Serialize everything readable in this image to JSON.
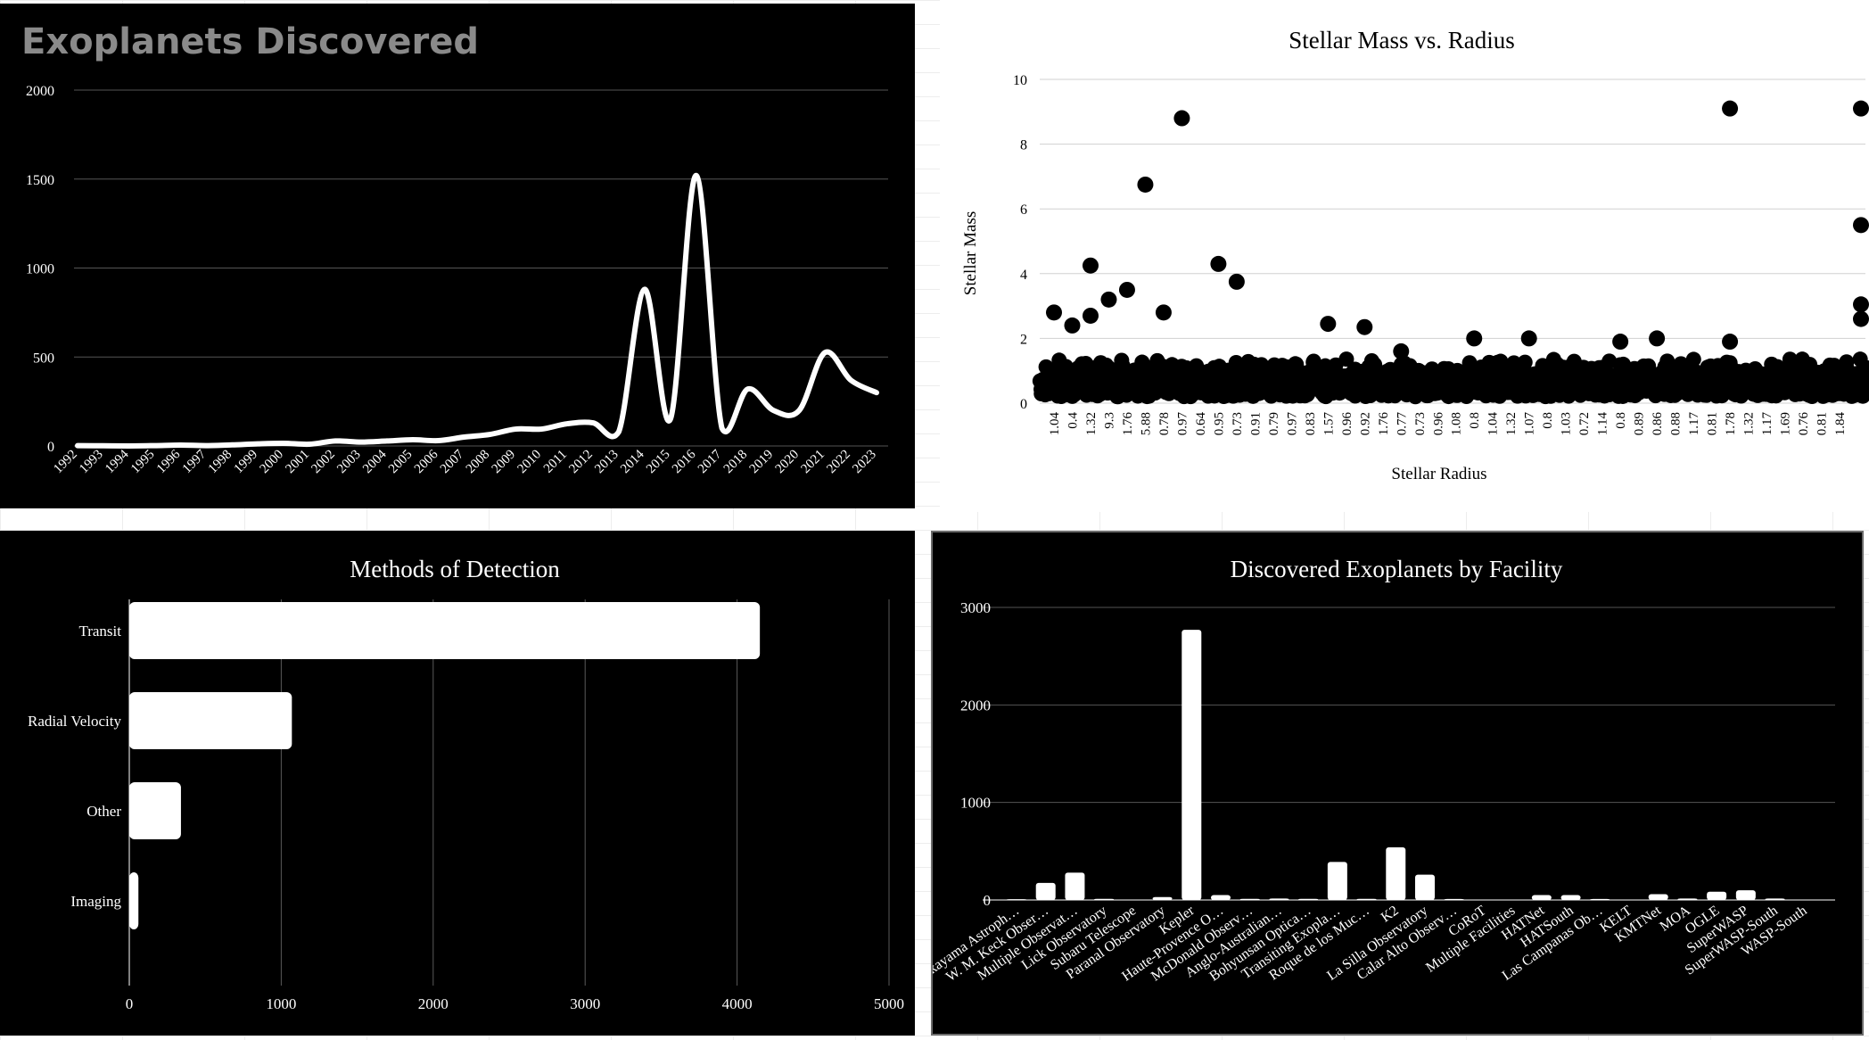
{
  "line_chart": {
    "title": "Exoplanets Discovered",
    "y_ticks": [
      0,
      500,
      1000,
      1500,
      2000
    ]
  },
  "scatter_chart": {
    "title": "Stellar Mass vs. Radius",
    "xlabel": "Stellar Radius",
    "ylabel": "Stellar Mass",
    "y_ticks": [
      0,
      2,
      4,
      6,
      8,
      10
    ],
    "x_tick_labels": [
      "1.04",
      "0.4",
      "1.32",
      "9.3",
      "1.76",
      "5.88",
      "0.78",
      "0.97",
      "0.64",
      "0.95",
      "0.73",
      "0.91",
      "0.79",
      "0.97",
      "0.83",
      "1.57",
      "0.96",
      "0.92",
      "1.76",
      "0.77",
      "0.73",
      "0.96",
      "1.08",
      "0.8",
      "1.04",
      "1.32",
      "1.07",
      "0.8",
      "1.03",
      "0.72",
      "1.14",
      "0.8",
      "0.89",
      "0.86",
      "0.88",
      "1.17",
      "0.81",
      "1.78",
      "1.32",
      "1.17",
      "1.69",
      "0.76",
      "0.81",
      "1.84"
    ]
  },
  "bar_chart": {
    "title": "Methods of Detection",
    "x_ticks": [
      0,
      1000,
      2000,
      3000,
      4000,
      5000
    ]
  },
  "column_chart": {
    "title": "Discovered Exoplanets by Facility",
    "y_ticks": [
      0,
      1000,
      2000,
      3000
    ]
  },
  "chart_data": [
    {
      "type": "line",
      "title": "Exoplanets Discovered",
      "categories": [
        "1992",
        "1993",
        "1994",
        "1995",
        "1996",
        "1997",
        "1998",
        "1999",
        "2000",
        "2001",
        "2002",
        "2003",
        "2004",
        "2005",
        "2006",
        "2007",
        "2008",
        "2009",
        "2010",
        "2011",
        "2012",
        "2013",
        "2014",
        "2015",
        "2016",
        "2017",
        "2018",
        "2019",
        "2020",
        "2021",
        "2022",
        "2023"
      ],
      "values": [
        2,
        1,
        0,
        2,
        5,
        2,
        6,
        12,
        15,
        10,
        28,
        22,
        28,
        35,
        30,
        50,
        65,
        95,
        95,
        125,
        130,
        80,
        880,
        150,
        1520,
        100,
        320,
        200,
        200,
        525,
        370,
        300
      ],
      "ylim": [
        0,
        2000
      ],
      "xlabel": "",
      "ylabel": "",
      "grid": true
    },
    {
      "type": "scatter",
      "title": "Stellar Mass vs. Radius",
      "xlabel": "Stellar Radius",
      "ylabel": "Stellar Mass",
      "ylim": [
        0,
        10
      ],
      "grid": true,
      "highlights": [
        {
          "x": 0,
          "y": 2.8
        },
        {
          "x": 1,
          "y": 2.4
        },
        {
          "x": 2,
          "y": 4.25
        },
        {
          "x": 2,
          "y": 2.7
        },
        {
          "x": 3,
          "y": 3.2
        },
        {
          "x": 4,
          "y": 3.5
        },
        {
          "x": 5,
          "y": 6.75
        },
        {
          "x": 6,
          "y": 2.8
        },
        {
          "x": 7,
          "y": 8.8
        },
        {
          "x": 9,
          "y": 4.3
        },
        {
          "x": 10,
          "y": 3.75
        },
        {
          "x": 15,
          "y": 2.45
        },
        {
          "x": 17,
          "y": 2.35
        },
        {
          "x": 19,
          "y": 1.6
        },
        {
          "x": 23,
          "y": 2.0
        },
        {
          "x": 26,
          "y": 2.0
        },
        {
          "x": 31,
          "y": 1.9
        },
        {
          "x": 33,
          "y": 2.0
        },
        {
          "x": 37,
          "y": 9.1
        },
        {
          "x": 37,
          "y": 1.9
        },
        {
          "x": 43,
          "y": 9.1
        },
        {
          "x": 43,
          "y": 5.5
        },
        {
          "x": 43,
          "y": 3.05
        },
        {
          "x": 43,
          "y": 2.6
        }
      ],
      "baseline_mass_range": [
        0.2,
        1.4
      ]
    },
    {
      "type": "bar",
      "orientation": "horizontal",
      "title": "Methods of Detection",
      "categories": [
        "Transit",
        "Radial Velocity",
        "Other",
        "Imaging"
      ],
      "values": [
        4150,
        1070,
        340,
        60
      ],
      "xlim": [
        0,
        5000
      ],
      "grid": true
    },
    {
      "type": "bar",
      "title": "Discovered Exoplanets by Facility",
      "categories": [
        "Okayama Astroph…",
        "W. M. Keck Obser…",
        "Multiple Observat…",
        "Lick Observatory",
        "Subaru Telescope",
        "Paranal Observatory",
        "Kepler",
        "Haute-Provence O…",
        "McDonald Observ…",
        "Anglo-Australian…",
        "Bohyunsan Optica…",
        "Transiting Exopla…",
        "Roque de los Muc…",
        "K2",
        "La Silla Observatory",
        "Calar Alto Observ…",
        "CoRoT",
        "Multiple Facilities",
        "HATNet",
        "HATSouth",
        "Las Campanas Ob…",
        "KELT",
        "KMTNet",
        "MOA",
        "OGLE",
        "SuperWASP",
        "SuperWASP-South",
        "WASP-South"
      ],
      "values": [
        8,
        175,
        280,
        12,
        5,
        30,
        2770,
        50,
        12,
        15,
        12,
        390,
        12,
        540,
        260,
        10,
        5,
        5,
        50,
        50,
        10,
        5,
        60,
        15,
        85,
        100,
        15,
        5
      ],
      "ylim": [
        0,
        3000
      ],
      "grid": true
    }
  ]
}
